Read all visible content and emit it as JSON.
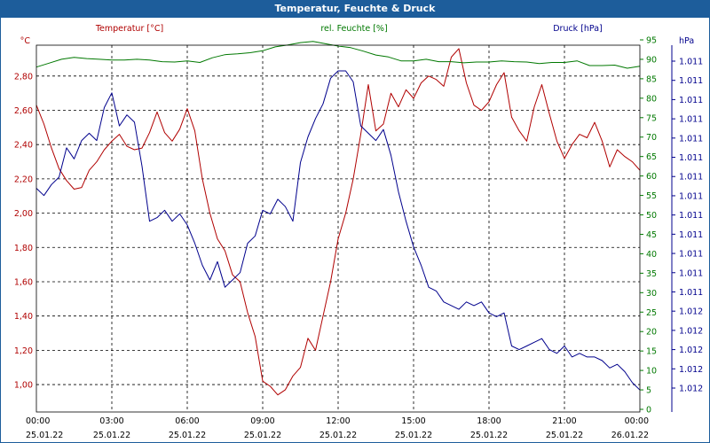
{
  "window": {
    "title": "Temperatur, Feuchte & Druck"
  },
  "colors": {
    "temperature": "#b00000",
    "humidity": "#007800",
    "pressure": "#00008c",
    "titlebar": "#1d5d9b",
    "grid": "#000000"
  },
  "chart_data": {
    "type": "line",
    "title": "Temperatur, Feuchte & Druck",
    "grid": true,
    "x": {
      "range": [
        "25.01.22 00:00",
        "26.01.22 00:00"
      ],
      "tick_times": [
        "00:00",
        "03:00",
        "06:00",
        "09:00",
        "12:00",
        "15:00",
        "18:00",
        "21:00",
        "00:00"
      ],
      "tick_dates": [
        "25.01.22",
        "25.01.22",
        "25.01.22",
        "25.01.22",
        "25.01.22",
        "25.01.22",
        "25.01.22",
        "25.01.22",
        "26.01.22"
      ]
    },
    "axes": {
      "temperature": {
        "label": "Temperatur [°C]",
        "unit": "°C",
        "range": [
          0.84,
          2.98
        ],
        "ticks": [
          "1,00",
          "1,20",
          "1,40",
          "1,60",
          "1,80",
          "2,00",
          "2,20",
          "2,40",
          "2,60",
          "2,80"
        ]
      },
      "humidity": {
        "label": "rel. Feuchte [%]",
        "unit": "%",
        "range": [
          0,
          96
        ],
        "ticks": [
          "0",
          "5",
          "10",
          "15",
          "20",
          "25",
          "30",
          "35",
          "40",
          "45",
          "50",
          "55",
          "60",
          "65",
          "70",
          "75",
          "80",
          "85",
          "90",
          "95"
        ]
      },
      "pressure": {
        "label": "Druck [hPa]",
        "unit": "hPa",
        "ticks": [
          "1.011",
          "1.011",
          "1.011",
          "1.011",
          "1.011",
          "1.011",
          "1.011",
          "1.011",
          "1.011",
          "1.011",
          "1.011",
          "1.011",
          "1.011",
          "1.012",
          "1.012",
          "1.012",
          "1.012",
          "1.012"
        ]
      }
    },
    "series": [
      {
        "name": "Temperatur [°C]",
        "axis": "temperature",
        "x": [
          0,
          0.3,
          0.6,
          0.9,
          1.2,
          1.5,
          1.8,
          2.1,
          2.4,
          2.7,
          3.0,
          3.3,
          3.6,
          3.9,
          4.2,
          4.5,
          4.8,
          5.1,
          5.4,
          5.7,
          6.0,
          6.3,
          6.6,
          6.9,
          7.2,
          7.5,
          7.8,
          8.1,
          8.4,
          8.7,
          9.0,
          9.3,
          9.6,
          9.9,
          10.2,
          10.5,
          10.8,
          11.1,
          11.4,
          11.7,
          12.0,
          12.3,
          12.6,
          12.9,
          13.2,
          13.5,
          13.8,
          14.1,
          14.4,
          14.7,
          15.0,
          15.3,
          15.6,
          15.9,
          16.2,
          16.5,
          16.8,
          17.1,
          17.4,
          17.7,
          18.0,
          18.3,
          18.6,
          18.9,
          19.2,
          19.5,
          19.8,
          20.1,
          20.4,
          20.7,
          21.0,
          21.3,
          21.6,
          21.9,
          22.2,
          22.5,
          22.8,
          23.1,
          23.4,
          23.7,
          24.0
        ],
        "y": [
          2.63,
          2.52,
          2.38,
          2.26,
          2.19,
          2.14,
          2.15,
          2.25,
          2.3,
          2.37,
          2.42,
          2.46,
          2.39,
          2.37,
          2.38,
          2.47,
          2.59,
          2.47,
          2.42,
          2.49,
          2.61,
          2.48,
          2.2,
          2.0,
          1.85,
          1.78,
          1.64,
          1.6,
          1.42,
          1.28,
          1.02,
          0.99,
          0.94,
          0.97,
          1.05,
          1.1,
          1.27,
          1.2,
          1.4,
          1.6,
          1.85,
          2.0,
          2.2,
          2.46,
          2.75,
          2.48,
          2.52,
          2.7,
          2.62,
          2.72,
          2.67,
          2.76,
          2.8,
          2.78,
          2.74,
          2.91,
          2.96,
          2.76,
          2.63,
          2.6,
          2.65,
          2.75,
          2.82,
          2.56,
          2.48,
          2.42,
          2.62,
          2.75,
          2.58,
          2.42,
          2.32,
          2.4,
          2.46,
          2.44,
          2.53,
          2.42,
          2.27,
          2.37,
          2.33,
          2.3,
          2.25
        ]
      },
      {
        "name": "rel. Feuchte [%]",
        "axis": "humidity",
        "x": [
          0,
          0.5,
          1,
          1.5,
          2,
          2.5,
          3,
          3.5,
          4,
          4.5,
          5,
          5.5,
          6,
          6.5,
          7,
          7.5,
          8,
          8.5,
          9,
          9.5,
          10,
          10.5,
          11,
          11.5,
          12,
          12.5,
          13,
          13.5,
          14,
          14.5,
          15,
          15.5,
          16,
          16.5,
          17,
          17.5,
          18,
          18.5,
          19,
          19.5,
          20,
          20.5,
          21,
          21.5,
          22,
          22.5,
          23,
          23.5,
          24
        ],
        "y": [
          88,
          89,
          90,
          90.5,
          90.2,
          90,
          89.8,
          89.8,
          90,
          89.8,
          89.4,
          89.3,
          89.6,
          89.2,
          90.4,
          91.2,
          91.4,
          91.7,
          92.2,
          93.2,
          93.7,
          94.3,
          94.6,
          94,
          93.4,
          93,
          92.1,
          91.1,
          90.6,
          89.6,
          89.6,
          90,
          89.4,
          89.4,
          89.1,
          89.3,
          89.3,
          89.6,
          89.4,
          89.3,
          88.9,
          89.2,
          89.2,
          89.6,
          88.4,
          88.4,
          88.5,
          87.7,
          88.2
        ]
      },
      {
        "name": "Druck [hPa]",
        "axis": "pressure",
        "note": "plotted in axis-relative units (tick labels all read 1.011/1.012)",
        "x": [
          0,
          0.3,
          0.6,
          0.9,
          1.2,
          1.5,
          1.8,
          2.1,
          2.4,
          2.7,
          3.0,
          3.3,
          3.6,
          3.9,
          4.2,
          4.5,
          4.8,
          5.1,
          5.4,
          5.7,
          6.0,
          6.3,
          6.6,
          6.9,
          7.2,
          7.5,
          7.8,
          8.1,
          8.4,
          8.7,
          9.0,
          9.3,
          9.6,
          9.9,
          10.2,
          10.5,
          10.8,
          11.1,
          11.4,
          11.7,
          12.0,
          12.3,
          12.6,
          12.9,
          13.2,
          13.5,
          13.8,
          14.1,
          14.4,
          14.7,
          15.0,
          15.3,
          15.6,
          15.9,
          16.2,
          16.5,
          16.8,
          17.1,
          17.4,
          17.7,
          18.0,
          18.3,
          18.6,
          18.9,
          19.2,
          19.5,
          19.8,
          20.1,
          20.4,
          20.7,
          21.0,
          21.3,
          21.6,
          21.9,
          22.2,
          22.5,
          22.8,
          23.1,
          23.4,
          23.7,
          24.0
        ],
        "y": [
          61,
          59,
          62,
          64,
          72,
          69,
          74,
          76,
          74,
          83,
          87,
          78,
          81,
          79,
          67,
          52,
          53,
          55,
          52,
          54,
          51,
          46,
          40,
          36,
          41,
          34,
          36,
          38,
          46,
          48,
          55,
          54,
          58,
          56,
          52,
          68,
          75,
          80,
          84,
          91,
          93,
          93,
          90,
          78,
          76,
          74,
          77,
          70,
          60,
          52,
          45,
          40,
          34,
          33,
          30,
          29,
          28,
          30,
          29,
          30,
          27,
          26,
          27,
          18,
          17,
          18,
          19,
          20,
          17,
          16,
          18,
          15,
          16,
          15,
          15,
          14,
          12,
          13,
          11,
          8,
          6
        ]
      }
    ]
  }
}
